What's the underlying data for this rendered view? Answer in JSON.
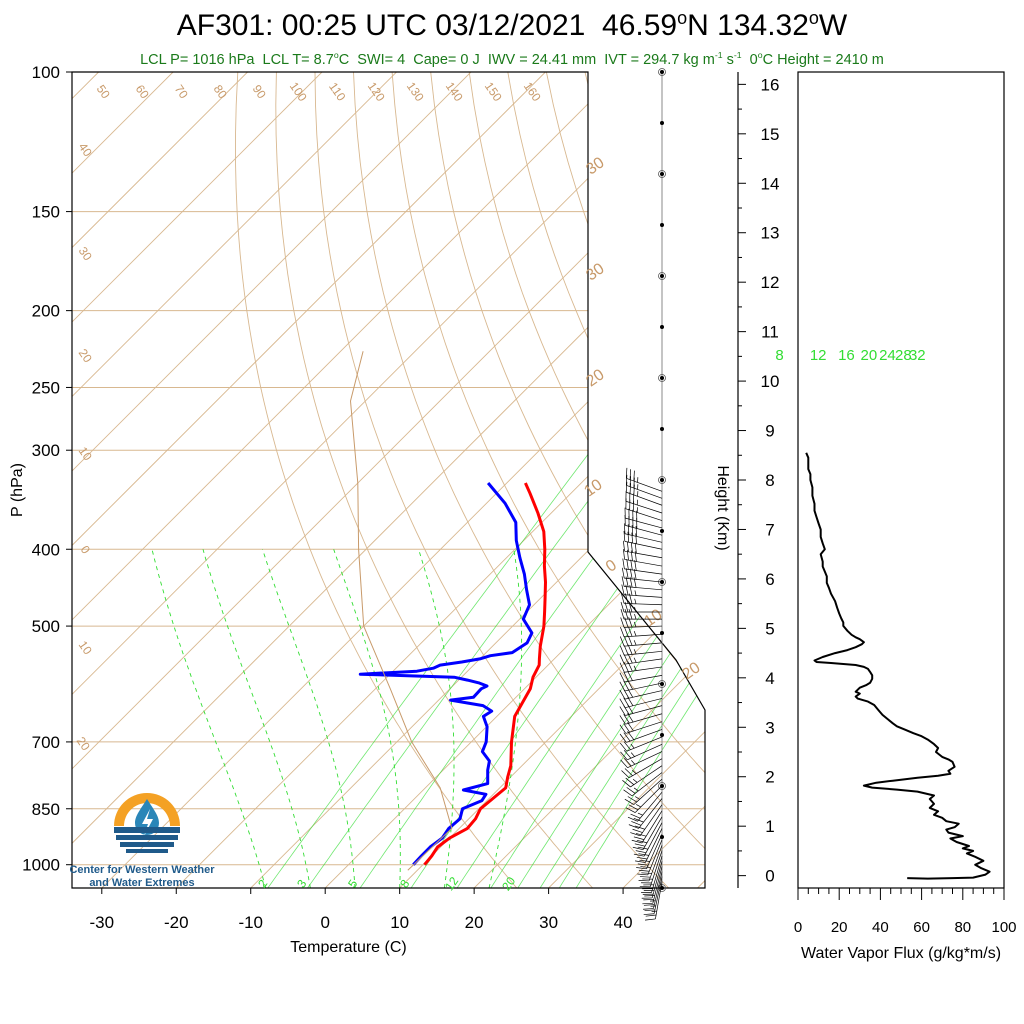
{
  "title": {
    "station": "AF301: 00:25 UTC 03/12/2021",
    "lat": "46.59",
    "lat_hemi": "N",
    "lon": "134.32",
    "lon_hemi": "W"
  },
  "subtitle": {
    "lcl_p": "LCL P= 1016 hPa",
    "lcl_t_pre": "LCL T= 8.7",
    "lcl_t_post": "C",
    "swi": "SWI= 4",
    "cape": "Cape= 0 J",
    "iwv": "IWV = 24.41 mm",
    "ivt_pre": "IVT = 294.7 kg m",
    "ivt_exp1": "-1",
    "ivt_mid": " s",
    "ivt_exp2": "-1",
    "zero_pre": "0",
    "zero_post": "C Height = 2410 m"
  },
  "logo": {
    "line1": "Center for Western Weather",
    "line2": "and Water Extremes",
    "colors": {
      "sun": "#f4a124",
      "drop": "#2a86b8",
      "water": "#1f5a8a"
    }
  },
  "chart_data": [
    {
      "type": "skew-t",
      "xlabel": "Temperature (C)",
      "ylabel": "P (hPa)",
      "xticks": [
        "-30",
        "-20",
        "-10",
        "0",
        "10",
        "20",
        "30",
        "40"
      ],
      "yticks": [
        "100",
        "150",
        "200",
        "250",
        "300",
        "400",
        "500",
        "700",
        "850",
        "1000"
      ],
      "xlim": [
        -34,
        51
      ],
      "ylim": [
        1070,
        100
      ],
      "y_scale": "log",
      "skew_note": "isotherms slanted 45 degrees to the right",
      "mixing_ratio_labels": [
        "8",
        "12",
        "16",
        "20",
        "24",
        "28",
        "32"
      ],
      "moist_adiabat_labels": [
        "2",
        "3",
        "5",
        "8",
        "12",
        "20"
      ],
      "dry_adiabat_labels": [
        "50",
        "60",
        "70",
        "80",
        "90",
        "100",
        "110",
        "120",
        "130",
        "140",
        "150",
        "160"
      ],
      "isotherm_labels": [
        "40",
        "30",
        "20",
        "10",
        "0",
        "10",
        "20",
        "30",
        "30",
        "20",
        "10",
        "0",
        "10",
        "20",
        "30"
      ],
      "colors": {
        "temperature": "#ff0000",
        "dewpoint": "#0000ff",
        "grid": "#d8b890",
        "mixing": "#33dd33",
        "parcel": "#c89a6a"
      },
      "series": [
        {
          "name": "Temperature",
          "points": [
            [
              1000,
              10.2
            ],
            [
              975,
              10.0
            ],
            [
              950,
              9.6
            ],
            [
              925,
              10.0
            ],
            [
              900,
              11.1
            ],
            [
              875,
              10.9
            ],
            [
              850,
              10.2
            ],
            [
              825,
              10.5
            ],
            [
              800,
              10.8
            ],
            [
              775,
              9.6
            ],
            [
              750,
              8.5
            ],
            [
              700,
              5.4
            ],
            [
              650,
              2.4
            ],
            [
              600,
              0.8
            ],
            [
              580,
              -0.4
            ],
            [
              560,
              -1.2
            ],
            [
              550,
              -2.0
            ],
            [
              530,
              -3.6
            ],
            [
              500,
              -5.8
            ],
            [
              480,
              -7.6
            ],
            [
              460,
              -9.5
            ],
            [
              440,
              -11.5
            ],
            [
              420,
              -13.8
            ],
            [
              400,
              -16.0
            ],
            [
              380,
              -18.5
            ],
            [
              360,
              -21.8
            ],
            [
              340,
              -25.5
            ],
            [
              330,
              -27.5
            ]
          ]
        },
        {
          "name": "Dewpoint",
          "points": [
            [
              1000,
              8.7
            ],
            [
              975,
              8.6
            ],
            [
              950,
              8.6
            ],
            [
              925,
              9.0
            ],
            [
              900,
              8.6
            ],
            [
              875,
              8.8
            ],
            [
              850,
              7.8
            ],
            [
              830,
              9.3
            ],
            [
              815,
              9.0
            ],
            [
              805,
              5.4
            ],
            [
              790,
              7.8
            ],
            [
              760,
              6.0
            ],
            [
              740,
              5.0
            ],
            [
              720,
              2.8
            ],
            [
              700,
              2.0
            ],
            [
              670,
              0.1
            ],
            [
              650,
              -1.8
            ],
            [
              640,
              -1.4
            ],
            [
              630,
              -3.3
            ],
            [
              620,
              -8.4
            ],
            [
              615,
              -5.7
            ],
            [
              600,
              -5.8
            ],
            [
              595,
              -5.4
            ],
            [
              590,
              -6.8
            ],
            [
              585,
              -8.8
            ],
            [
              580,
              -11.0
            ],
            [
              575,
              -24.0
            ],
            [
              570,
              -16.8
            ],
            [
              565,
              -15.0
            ],
            [
              560,
              -14.5
            ],
            [
              555,
              -12.0
            ],
            [
              550,
              -10.0
            ],
            [
              545,
              -9.0
            ],
            [
              540,
              -6.5
            ],
            [
              525,
              -5.8
            ],
            [
              510,
              -6.5
            ],
            [
              490,
              -9.5
            ],
            [
              470,
              -10.6
            ],
            [
              450,
              -13.0
            ],
            [
              430,
              -15.4
            ],
            [
              410,
              -18.2
            ],
            [
              390,
              -21.0
            ],
            [
              370,
              -23.5
            ],
            [
              350,
              -27.5
            ],
            [
              330,
              -32.5
            ]
          ]
        },
        {
          "name": "Parcel",
          "points": [
            [
              225,
              -67
            ],
            [
              260,
              -62
            ],
            [
              330,
              -50
            ],
            [
              400,
              -41
            ],
            [
              500,
              -30
            ],
            [
              600,
              -18
            ],
            [
              700,
              -8
            ],
            [
              800,
              2
            ],
            [
              900,
              9
            ],
            [
              1016,
              8.7
            ]
          ]
        }
      ],
      "winds": {
        "note": "wind barbs in knots at observed levels",
        "pressures": [
          338,
          345,
          352,
          360,
          368,
          376,
          384,
          392,
          400,
          410,
          420,
          430,
          440,
          450,
          460,
          470,
          480,
          490,
          500,
          512,
          525,
          538,
          550,
          563,
          577,
          590,
          603,
          617,
          630,
          645,
          660,
          675,
          690,
          705,
          720,
          735,
          750,
          765,
          780,
          795,
          810,
          825,
          840,
          855,
          870,
          885,
          900,
          915,
          930,
          945,
          960,
          975,
          990,
          1005,
          1020,
          1035,
          1050
        ],
        "direction_deg": [
          290,
          290,
          290,
          288,
          288,
          285,
          285,
          283,
          282,
          280,
          280,
          278,
          276,
          275,
          274,
          272,
          270,
          270,
          268,
          266,
          265,
          264,
          262,
          262,
          260,
          258,
          257,
          256,
          255,
          254,
          252,
          250,
          248,
          246,
          245,
          240,
          236,
          232,
          228,
          225,
          220,
          218,
          215,
          212,
          210,
          208,
          206,
          204,
          202,
          200,
          198,
          196,
          195,
          194,
          193,
          192,
          190
        ],
        "speed_kt": [
          35,
          35,
          35,
          35,
          35,
          40,
          40,
          40,
          40,
          40,
          40,
          40,
          40,
          40,
          35,
          35,
          35,
          35,
          35,
          35,
          35,
          35,
          35,
          35,
          30,
          30,
          30,
          30,
          30,
          30,
          30,
          30,
          25,
          25,
          25,
          25,
          25,
          25,
          25,
          25,
          25,
          30,
          30,
          30,
          30,
          30,
          30,
          30,
          30,
          30,
          30,
          30,
          30,
          30,
          25,
          25,
          25
        ]
      },
      "height_markers_km": [
        16,
        15,
        14,
        13,
        12,
        11,
        10,
        9,
        8,
        7,
        6,
        5,
        4,
        3,
        2,
        1,
        0
      ]
    },
    {
      "type": "line",
      "xlabel": "Water Vapor Flux (g/kg*m/s)",
      "ylabel": "Height (Km)",
      "xticks": [
        "0",
        "20",
        "40",
        "60",
        "80",
        "100"
      ],
      "yticks": [
        "0",
        "1",
        "2",
        "3",
        "4",
        "5",
        "6",
        "7",
        "8",
        "9",
        "10",
        "11",
        "12",
        "13",
        "14",
        "15",
        "16"
      ],
      "xlim": [
        0,
        100
      ],
      "ylim": [
        -0.25,
        16.25
      ],
      "colors": {
        "line": "#000000"
      },
      "series": [
        {
          "name": "",
          "points": [
            [
              53,
              -0.05
            ],
            [
              63,
              -0.06
            ],
            [
              75,
              -0.05
            ],
            [
              85,
              -0.04
            ],
            [
              91,
              0.02
            ],
            [
              93,
              0.08
            ],
            [
              89,
              0.15
            ],
            [
              86,
              0.22
            ],
            [
              90,
              0.3
            ],
            [
              86,
              0.38
            ],
            [
              82,
              0.45
            ],
            [
              85,
              0.5
            ],
            [
              80,
              0.55
            ],
            [
              83,
              0.6
            ],
            [
              77,
              0.68
            ],
            [
              74,
              0.75
            ],
            [
              80,
              0.8
            ],
            [
              73,
              0.87
            ],
            [
              72,
              0.93
            ],
            [
              76,
              0.98
            ],
            [
              78,
              1.05
            ],
            [
              72,
              1.1
            ],
            [
              70,
              1.17
            ],
            [
              66,
              1.23
            ],
            [
              68,
              1.3
            ],
            [
              64,
              1.37
            ],
            [
              66,
              1.45
            ],
            [
              64,
              1.55
            ],
            [
              66,
              1.62
            ],
            [
              58,
              1.7
            ],
            [
              48,
              1.74
            ],
            [
              36,
              1.78
            ],
            [
              32,
              1.82
            ],
            [
              38,
              1.88
            ],
            [
              46,
              1.92
            ],
            [
              58,
              1.98
            ],
            [
              68,
              2.02
            ],
            [
              74,
              2.06
            ],
            [
              73,
              2.12
            ],
            [
              76,
              2.2
            ],
            [
              75,
              2.3
            ],
            [
              73,
              2.35
            ],
            [
              70,
              2.4
            ],
            [
              67,
              2.5
            ],
            [
              68,
              2.58
            ],
            [
              66,
              2.66
            ],
            [
              63,
              2.75
            ],
            [
              60,
              2.82
            ],
            [
              56,
              2.88
            ],
            [
              52,
              2.95
            ],
            [
              48,
              3.02
            ],
            [
              46,
              3.08
            ],
            [
              44,
              3.15
            ],
            [
              41,
              3.25
            ],
            [
              39,
              3.35
            ],
            [
              37,
              3.45
            ],
            [
              34,
              3.52
            ],
            [
              29,
              3.58
            ],
            [
              28,
              3.62
            ],
            [
              30,
              3.68
            ],
            [
              28,
              3.72
            ],
            [
              30,
              3.8
            ],
            [
              33,
              3.85
            ],
            [
              35,
              3.9
            ],
            [
              36,
              3.98
            ],
            [
              36,
              4.05
            ],
            [
              35,
              4.12
            ],
            [
              34,
              4.18
            ],
            [
              32,
              4.22
            ],
            [
              28,
              4.26
            ],
            [
              22,
              4.28
            ],
            [
              16,
              4.3
            ],
            [
              9,
              4.32
            ],
            [
              8,
              4.35
            ],
            [
              12,
              4.42
            ],
            [
              18,
              4.5
            ],
            [
              24,
              4.56
            ],
            [
              28,
              4.62
            ],
            [
              31,
              4.68
            ],
            [
              32,
              4.72
            ],
            [
              30,
              4.78
            ],
            [
              28,
              4.82
            ],
            [
              26,
              4.87
            ],
            [
              24,
              4.95
            ],
            [
              22,
              5.05
            ],
            [
              22,
              5.12
            ],
            [
              21,
              5.2
            ],
            [
              20,
              5.3
            ],
            [
              19,
              5.42
            ],
            [
              18,
              5.55
            ],
            [
              16,
              5.7
            ],
            [
              15,
              5.82
            ],
            [
              14,
              5.92
            ],
            [
              14,
              6.05
            ],
            [
              13,
              6.15
            ],
            [
              12,
              6.25
            ],
            [
              12,
              6.35
            ],
            [
              11,
              6.5
            ],
            [
              13,
              6.6
            ],
            [
              12,
              6.72
            ],
            [
              11,
              6.85
            ],
            [
              11,
              7.0
            ],
            [
              10,
              7.12
            ],
            [
              9,
              7.25
            ],
            [
              8,
              7.38
            ],
            [
              8,
              7.52
            ],
            [
              7,
              7.68
            ],
            [
              7,
              7.85
            ],
            [
              6,
              8.0
            ],
            [
              6,
              8.12
            ],
            [
              5,
              8.22
            ],
            [
              5,
              8.32
            ],
            [
              5,
              8.45
            ],
            [
              4,
              8.55
            ]
          ]
        }
      ]
    }
  ]
}
